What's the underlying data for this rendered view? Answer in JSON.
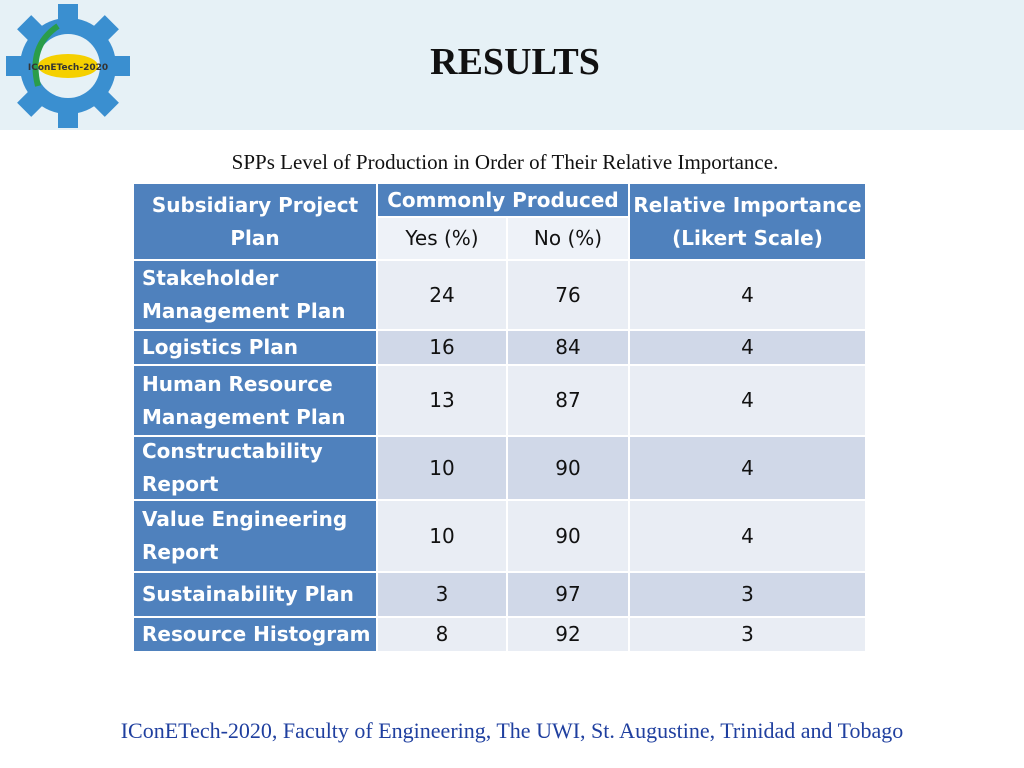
{
  "logo": {
    "text": "IConETech-2020"
  },
  "header": {
    "title": "RESULTS"
  },
  "table": {
    "caption": "SPPs Level of Production in Order of Their Relative Importance.",
    "header": {
      "plan": "Subsidiary Project Plan",
      "group": "Commonly Produced",
      "yes": "Yes (%)",
      "no": "No (%)",
      "importance": "Relative Importance (Likert Scale)"
    },
    "rows": [
      [
        "Stakeholder Management Plan",
        24,
        76,
        4
      ],
      [
        "Logistics Plan",
        16,
        84,
        4
      ],
      [
        "Human Resource Management Plan",
        13,
        87,
        4
      ],
      [
        "Constructability Report",
        10,
        90,
        4
      ],
      [
        "Value Engineering Report",
        10,
        90,
        4
      ],
      [
        "Sustainability Plan",
        3,
        97,
        3
      ],
      [
        "Resource Histogram",
        8,
        92,
        3
      ]
    ]
  },
  "footer": {
    "text": "IConETech-2020, Faculty of Engineering, The UWI, St. Augustine, Trinidad and Tobago"
  }
}
